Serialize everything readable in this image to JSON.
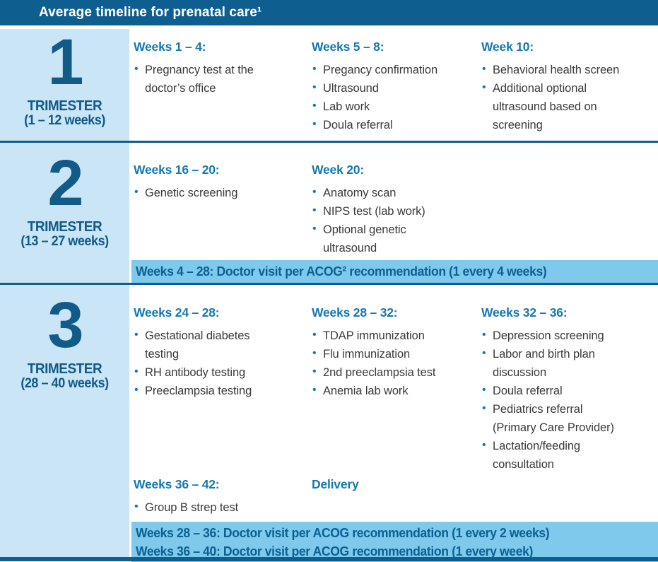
{
  "title": "Average timeline for prenatal care¹",
  "colors": {
    "header_bg": "#0e5f8f",
    "trimester_panel_bg": "#c9e5f6",
    "banner_bg": "#7fc9ed",
    "heading_blue": "#1478b2",
    "trimester_text_blue": "#125a87",
    "body_text": "#3a3a39",
    "divider": "#0e5f8f"
  },
  "trimesters": [
    {
      "number": "1",
      "label": "TRIMESTER",
      "range": "(1 – 12 weeks)",
      "columns": [
        {
          "heading": "Weeks 1 – 4:",
          "items": [
            "Pregnancy test at the doctor’s office"
          ]
        },
        {
          "heading": "Weeks 5 – 8:",
          "items": [
            "Pregancy confirmation",
            "Ultrasound",
            "Lab work",
            "Doula referral"
          ]
        },
        {
          "heading": "Week 10:",
          "items": [
            "Behavioral health screen",
            "Additional optional ultrasound based on screening"
          ]
        }
      ]
    },
    {
      "number": "2",
      "label": "TRIMESTER",
      "range": "(13 – 27 weeks)",
      "columns": [
        {
          "heading": "Weeks 16 – 20:",
          "items": [
            "Genetic screening"
          ]
        },
        {
          "heading": "Week 20:",
          "items": [
            "Anatomy scan",
            "NIPS test (lab work)",
            "Optional genetic ultrasound"
          ]
        }
      ],
      "banner": "Weeks 4 – 28: Doctor visit per ACOG² recommendation (1 every 4 weeks)"
    },
    {
      "number": "3",
      "label": "TRIMESTER",
      "range": "(28 – 40 weeks)",
      "columns": [
        {
          "heading": "Weeks 24 – 28:",
          "items": [
            "Gestational diabetes testing",
            "RH antibody testing",
            "Preeclampsia testing"
          ]
        },
        {
          "heading": "Weeks 28 – 32:",
          "items": [
            "TDAP immunization",
            "Flu immunization",
            "2nd preeclampsia test",
            "Anemia lab work"
          ]
        },
        {
          "heading": "Weeks 32 – 36:",
          "items": [
            "Depression screening",
            "Labor and birth plan discussion",
            "Doula referral",
            "Pediatrics referral (Primary Care Provider)",
            "Lactation/feeding consultation"
          ]
        }
      ],
      "columns2": [
        {
          "heading": "Weeks 36 – 42:",
          "items": [
            "Group B strep test"
          ]
        },
        {
          "heading": "Delivery",
          "items": []
        }
      ],
      "banner_lines": [
        "Weeks 28 – 36: Doctor visit per ACOG recommendation (1 every 2 weeks)",
        "Weeks 36 – 40: Doctor visit per ACOG recommendation (1 every week)"
      ]
    }
  ]
}
